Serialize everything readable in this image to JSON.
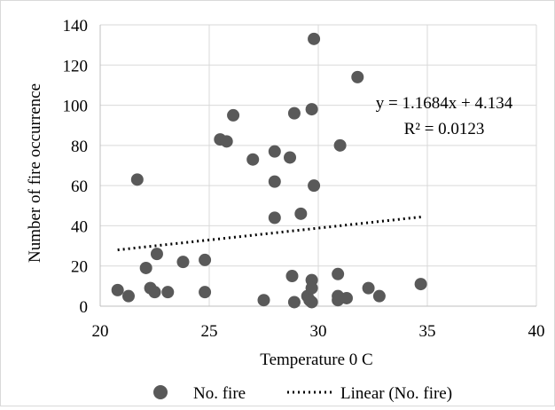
{
  "chart_data": {
    "type": "scatter",
    "xlabel": "Temperature 0 C",
    "ylabel": "Number of  fire occurrence",
    "xlim": [
      20,
      40
    ],
    "ylim": [
      0,
      140
    ],
    "x_ticks": [
      20,
      25,
      30,
      35,
      40
    ],
    "y_ticks": [
      0,
      20,
      40,
      60,
      80,
      100,
      120,
      140
    ],
    "grid": true,
    "legend_position": "bottom",
    "series": [
      {
        "name": "No. fire",
        "color": "#595959",
        "points": [
          {
            "x": 20.8,
            "y": 8
          },
          {
            "x": 21.3,
            "y": 5
          },
          {
            "x": 21.7,
            "y": 63
          },
          {
            "x": 22.1,
            "y": 19
          },
          {
            "x": 22.3,
            "y": 9
          },
          {
            "x": 22.5,
            "y": 7
          },
          {
            "x": 22.6,
            "y": 26
          },
          {
            "x": 23.1,
            "y": 7
          },
          {
            "x": 23.8,
            "y": 22
          },
          {
            "x": 24.8,
            "y": 23
          },
          {
            "x": 24.8,
            "y": 7
          },
          {
            "x": 25.5,
            "y": 83
          },
          {
            "x": 25.8,
            "y": 82
          },
          {
            "x": 26.1,
            "y": 95
          },
          {
            "x": 27.0,
            "y": 73
          },
          {
            "x": 27.5,
            "y": 3
          },
          {
            "x": 28.0,
            "y": 77
          },
          {
            "x": 28.0,
            "y": 62
          },
          {
            "x": 28.0,
            "y": 44
          },
          {
            "x": 28.7,
            "y": 74
          },
          {
            "x": 28.8,
            "y": 15
          },
          {
            "x": 28.9,
            "y": 96
          },
          {
            "x": 28.9,
            "y": 2
          },
          {
            "x": 29.2,
            "y": 46
          },
          {
            "x": 29.5,
            "y": 5
          },
          {
            "x": 29.6,
            "y": 3
          },
          {
            "x": 29.7,
            "y": 98
          },
          {
            "x": 29.7,
            "y": 13
          },
          {
            "x": 29.7,
            "y": 9
          },
          {
            "x": 29.7,
            "y": 2
          },
          {
            "x": 29.8,
            "y": 60
          },
          {
            "x": 29.8,
            "y": 133
          },
          {
            "x": 30.9,
            "y": 16
          },
          {
            "x": 30.9,
            "y": 5
          },
          {
            "x": 30.9,
            "y": 3
          },
          {
            "x": 31.0,
            "y": 80
          },
          {
            "x": 31.3,
            "y": 4
          },
          {
            "x": 31.8,
            "y": 114
          },
          {
            "x": 32.3,
            "y": 9
          },
          {
            "x": 32.8,
            "y": 5
          },
          {
            "x": 34.7,
            "y": 11
          }
        ]
      }
    ],
    "trendline": {
      "name": "Linear (No. fire)",
      "x_range": [
        20.8,
        34.8
      ],
      "y_range": [
        28,
        44.5
      ]
    },
    "annotations": {
      "equation": "y = 1.1684x + 4.134",
      "r_squared": "R² = 0.0123"
    }
  },
  "legend": {
    "marker_label": "No. fire",
    "line_label": "Linear (No. fire)"
  },
  "colors": {
    "marker": "#595959",
    "trendline": "#000000",
    "grid": "#d9d9d9",
    "axis": "#bfbfbf"
  }
}
